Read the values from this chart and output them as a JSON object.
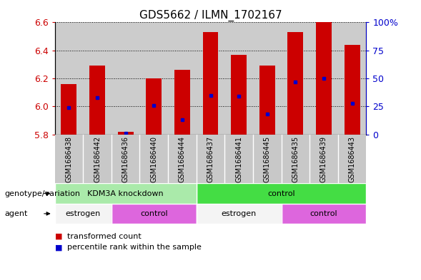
{
  "title": "GDS5662 / ILMN_1702167",
  "samples": [
    "GSM1686438",
    "GSM1686442",
    "GSM1686436",
    "GSM1686440",
    "GSM1686444",
    "GSM1686437",
    "GSM1686441",
    "GSM1686445",
    "GSM1686435",
    "GSM1686439",
    "GSM1686443"
  ],
  "transformed_counts": [
    6.16,
    6.29,
    5.82,
    6.2,
    6.26,
    6.53,
    6.37,
    6.29,
    6.53,
    6.6,
    6.44
  ],
  "percentile_ranks": [
    24,
    33,
    1,
    26,
    13,
    35,
    34,
    18,
    47,
    50,
    28
  ],
  "ylim_left": [
    5.8,
    6.6
  ],
  "ylim_right": [
    0,
    100
  ],
  "yticks_left": [
    5.8,
    6.0,
    6.2,
    6.4,
    6.6
  ],
  "yticks_right": [
    0,
    25,
    50,
    75,
    100
  ],
  "bar_color": "#cc0000",
  "dot_color": "#0000cc",
  "bar_width": 0.55,
  "genotype_groups": [
    {
      "label": "KDM3A knockdown",
      "start": 0,
      "end": 5,
      "color": "#aaeaaa"
    },
    {
      "label": "control",
      "start": 5,
      "end": 11,
      "color": "#44dd44"
    }
  ],
  "agent_groups": [
    {
      "label": "estrogen",
      "start": 0,
      "end": 2,
      "color": "#f4f4f4"
    },
    {
      "label": "control",
      "start": 2,
      "end": 5,
      "color": "#dd66dd"
    },
    {
      "label": "estrogen",
      "start": 5,
      "end": 8,
      "color": "#f4f4f4"
    },
    {
      "label": "control",
      "start": 8,
      "end": 11,
      "color": "#dd66dd"
    }
  ],
  "legend_items": [
    {
      "label": "transformed count",
      "color": "#cc0000"
    },
    {
      "label": "percentile rank within the sample",
      "color": "#0000cc"
    }
  ],
  "genotype_label": "genotype/variation",
  "agent_label": "agent",
  "sample_bg_color": "#cccccc",
  "ylabel_left_color": "#cc0000",
  "ylabel_right_color": "#0000cc",
  "xlabel_area_color": "#c8c8c8"
}
